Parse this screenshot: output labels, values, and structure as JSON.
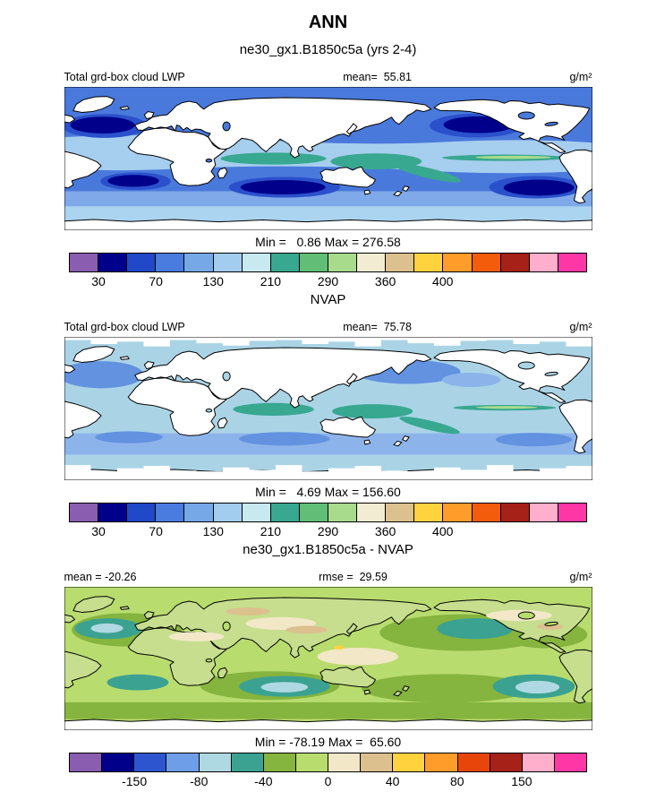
{
  "title": "ANN",
  "subtitle": "ne30_gx1.B1850c5a (yrs 2-4)",
  "panels": [
    {
      "header_left": "Total grd-box cloud LWP",
      "header_center": "mean=  55.81",
      "header_right": "g/m²",
      "minmax_text": "Min =   0.86 Max = 276.58",
      "colorbar": "lwp"
    },
    {
      "section_title": "NVAP",
      "header_left": "Total grd-box cloud LWP",
      "header_center": "mean=  75.78",
      "header_right": "g/m²",
      "minmax_text": "Min =   4.69 Max = 156.60",
      "colorbar": "lwp"
    },
    {
      "section_title": "ne30_gx1.B1850c5a - NVAP",
      "header_left": "mean = -20.26",
      "header_center": "rmse =  29.59",
      "header_right": "g/m²",
      "minmax_text": "Min = -78.19 Max =  65.60",
      "colorbar": "diff"
    }
  ],
  "colorbars": {
    "lwp": {
      "segments": 18,
      "colors": [
        "#8A5DB0",
        "#00008B",
        "#2048C8",
        "#4A7CE0",
        "#76A8E8",
        "#A2CDEE",
        "#C9E9F0",
        "#38A890",
        "#62BE76",
        "#A8DC8C",
        "#F2ECD2",
        "#DCC08E",
        "#FFD23E",
        "#FF9C2A",
        "#F25C0A",
        "#A62117",
        "#FFAECB",
        "#FF37A6"
      ],
      "tick_labels": [
        "30",
        "70",
        "130",
        "210",
        "290",
        "360",
        "400"
      ],
      "tick_boundaries": [
        1,
        3,
        5,
        7,
        9,
        11,
        13
      ]
    },
    "diff": {
      "segments": 16,
      "colors": [
        "#8A5DB0",
        "#00008B",
        "#2E55D0",
        "#6E9EE8",
        "#AFD9E2",
        "#3BA291",
        "#85B43F",
        "#B9DC6E",
        "#F2E8C8",
        "#DCC08E",
        "#FFD23E",
        "#FF9C2A",
        "#E8450A",
        "#A62117",
        "#FFAECB",
        "#FF37A6"
      ],
      "tick_labels": [
        "-150",
        "-80",
        "-40",
        "0",
        "40",
        "80",
        "150"
      ],
      "tick_boundaries": [
        2,
        4,
        6,
        8,
        10,
        12,
        14
      ]
    }
  },
  "map_palette": {
    "m1_base": "#4A79DC",
    "m1_band": "#A6CEEE",
    "m1_mid": "#7FA9E8",
    "m1_polar": "#ABD4F0",
    "m1_deep": "#00008B",
    "m1_deep2": "#2B50CC",
    "teal": "#38A890",
    "green_sliver": "#A8DC8C",
    "m2_base": "#AAD4E6",
    "m2_blue": "#6292E0",
    "m2_lblue": "#8DB4EA",
    "m3_base": "#B9DC6E",
    "m3_olive": "#85B43F",
    "m3_teal": "#3BA291",
    "m3_pale": "#AFD9E2",
    "m3_cream": "#F2E8C8",
    "m3_tan": "#DCC08E",
    "m3_yellow": "#FFD23E",
    "m3_land": "#C6DE8E",
    "land": "#FFFFFF",
    "coast": "#000000"
  },
  "chart_data": [
    {
      "type": "heatmap",
      "season": "ANN",
      "case": "ne30_gx1.B1850c5a (yrs 2-4)",
      "title": "Total grd-box cloud LWP",
      "units": "g/m2",
      "projection": "global lat-lon contour map",
      "stats": {
        "mean": 55.81,
        "min": 0.86,
        "max": 276.58
      },
      "colorbar_ticks": [
        30,
        70,
        130,
        210,
        290,
        360,
        400
      ]
    },
    {
      "type": "heatmap",
      "season": "ANN",
      "case": "NVAP",
      "title": "Total grd-box cloud LWP",
      "units": "g/m2",
      "projection": "global lat-lon contour map",
      "stats": {
        "mean": 75.78,
        "min": 4.69,
        "max": 156.6
      },
      "colorbar_ticks": [
        30,
        70,
        130,
        210,
        290,
        360,
        400
      ]
    },
    {
      "type": "heatmap",
      "season": "ANN",
      "case": "ne30_gx1.B1850c5a - NVAP",
      "title": "Difference: model minus NVAP",
      "units": "g/m2",
      "projection": "global lat-lon contour map",
      "stats": {
        "mean": -20.26,
        "rmse": 29.59,
        "min": -78.19,
        "max": 65.6
      },
      "colorbar_ticks": [
        -150,
        -80,
        -40,
        0,
        40,
        80,
        150
      ]
    }
  ]
}
